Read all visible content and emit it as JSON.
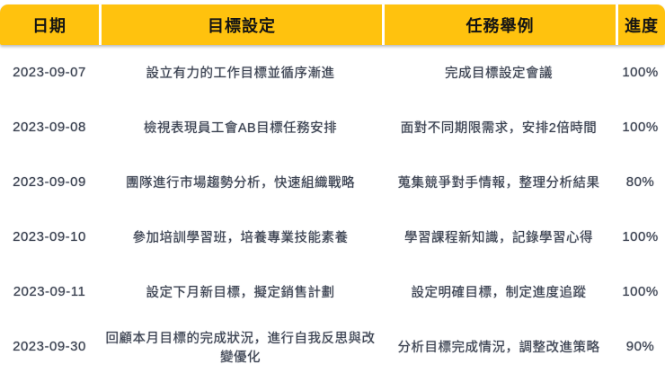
{
  "chart_data": {
    "type": "table",
    "title": "",
    "columns": [
      {
        "key": "date",
        "label": "日期"
      },
      {
        "key": "goal",
        "label": "目標設定"
      },
      {
        "key": "task",
        "label": "任務舉例"
      },
      {
        "key": "progress",
        "label": "進度"
      }
    ],
    "rows": [
      {
        "date": "2023-09-07",
        "goal": "設立有力的工作目標並循序漸進",
        "task": "完成目標設定會議",
        "progress": "100%"
      },
      {
        "date": "2023-09-08",
        "goal": "檢視表現員工會AB目標任務安排",
        "task": "面對不同期限需求，安排2倍時間",
        "progress": "100%"
      },
      {
        "date": "2023-09-09",
        "goal": "團隊進行市場趨勢分析，快速組織戰略",
        "task": "蒐集競爭對手情報，整理分析結果",
        "progress": "80%"
      },
      {
        "date": "2023-09-10",
        "goal": "參加培訓學習班，培養專業技能素養",
        "task": "學習課程新知識，記錄學習心得",
        "progress": "100%"
      },
      {
        "date": "2023-09-11",
        "goal": "設定下月新目標，擬定銷售計劃",
        "task": "設定明確目標，制定進度追蹤",
        "progress": "100%"
      },
      {
        "date": "2023-09-30",
        "goal": "回顧本月目標的完成狀況，進行自我反思與改變優化",
        "task": "分析目標完成情況，調整改進策略",
        "progress": "90%"
      }
    ],
    "layout": {
      "header_bg": "#FFC20E",
      "header_text_color": "#141414",
      "body_text_color": "#3A4150",
      "divider_color": "#FFFFFF",
      "grid": "off"
    }
  }
}
